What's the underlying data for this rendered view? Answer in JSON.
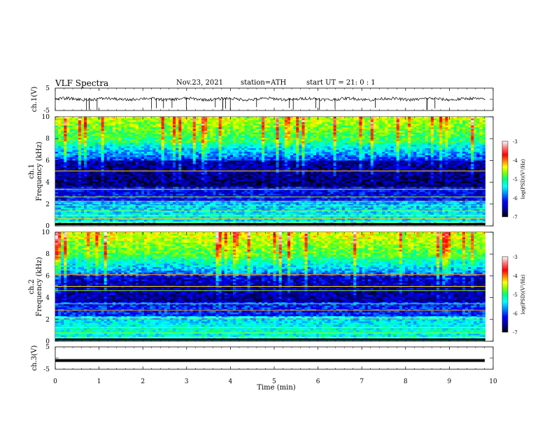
{
  "header": {
    "title": "VLF  Spectra",
    "date": "Nov.23, 2021",
    "station": "station=ATH",
    "start": "start  UT  =   21: 0  : 1"
  },
  "chart_data": [
    {
      "type": "line",
      "name": "ch1-waveform",
      "ylabel": "ch.1(V)",
      "ylim": [
        -5,
        5
      ],
      "yticks": [
        "5",
        "-5"
      ],
      "xlim": [
        0,
        10
      ],
      "description_level": 0.1
    },
    {
      "type": "heatmap",
      "name": "ch1-spectrogram",
      "ylabel": "ch.1\nFrequency (kHz)",
      "ylabel_line1": "ch.1",
      "ylabel_line2": "Frequency  (kHz)",
      "ylim": [
        0,
        10
      ],
      "yticks": [
        "0",
        "2",
        "4",
        "6",
        "8",
        "10"
      ],
      "xlim": [
        0,
        9.82
      ],
      "colorbar": {
        "label": "log(PSD)(V²/Hz)",
        "range": [
          -7,
          -3
        ],
        "ticks": [
          "-3",
          "-4",
          "-5",
          "-6",
          "-7"
        ]
      }
    },
    {
      "type": "heatmap",
      "name": "ch2-spectrogram",
      "ylabel_line1": "ch.2",
      "ylabel_line2": "Frequency  (kHz)",
      "ylim": [
        0,
        10
      ],
      "yticks": [
        "0",
        "2",
        "4",
        "6",
        "8",
        "10"
      ],
      "xlim": [
        0,
        9.82
      ],
      "colorbar": {
        "label": "log(PSD)(V²/Hz)",
        "range": [
          -7,
          -3
        ],
        "ticks": [
          "-3",
          "-4",
          "-5",
          "-6",
          "-7"
        ]
      }
    },
    {
      "type": "line",
      "name": "ch3-waveform",
      "ylabel": "ch.3(V)",
      "ylim": [
        -5,
        5
      ],
      "yticks": [
        "5",
        "-5"
      ],
      "xlim": [
        0,
        10
      ],
      "level": -1.1
    }
  ],
  "xaxis": {
    "label": "Time  (min)",
    "ticks": [
      "0",
      "1",
      "2",
      "3",
      "4",
      "5",
      "6",
      "7",
      "8",
      "9",
      "10"
    ],
    "range": [
      0,
      10
    ]
  },
  "colors": {
    "stops": [
      "#000000",
      "#00007f",
      "#0000ff",
      "#0080ff",
      "#00ffff",
      "#00ff80",
      "#80ff00",
      "#ffff00",
      "#ff8000",
      "#ff0000",
      "#ff8080",
      "#ffffff"
    ]
  }
}
